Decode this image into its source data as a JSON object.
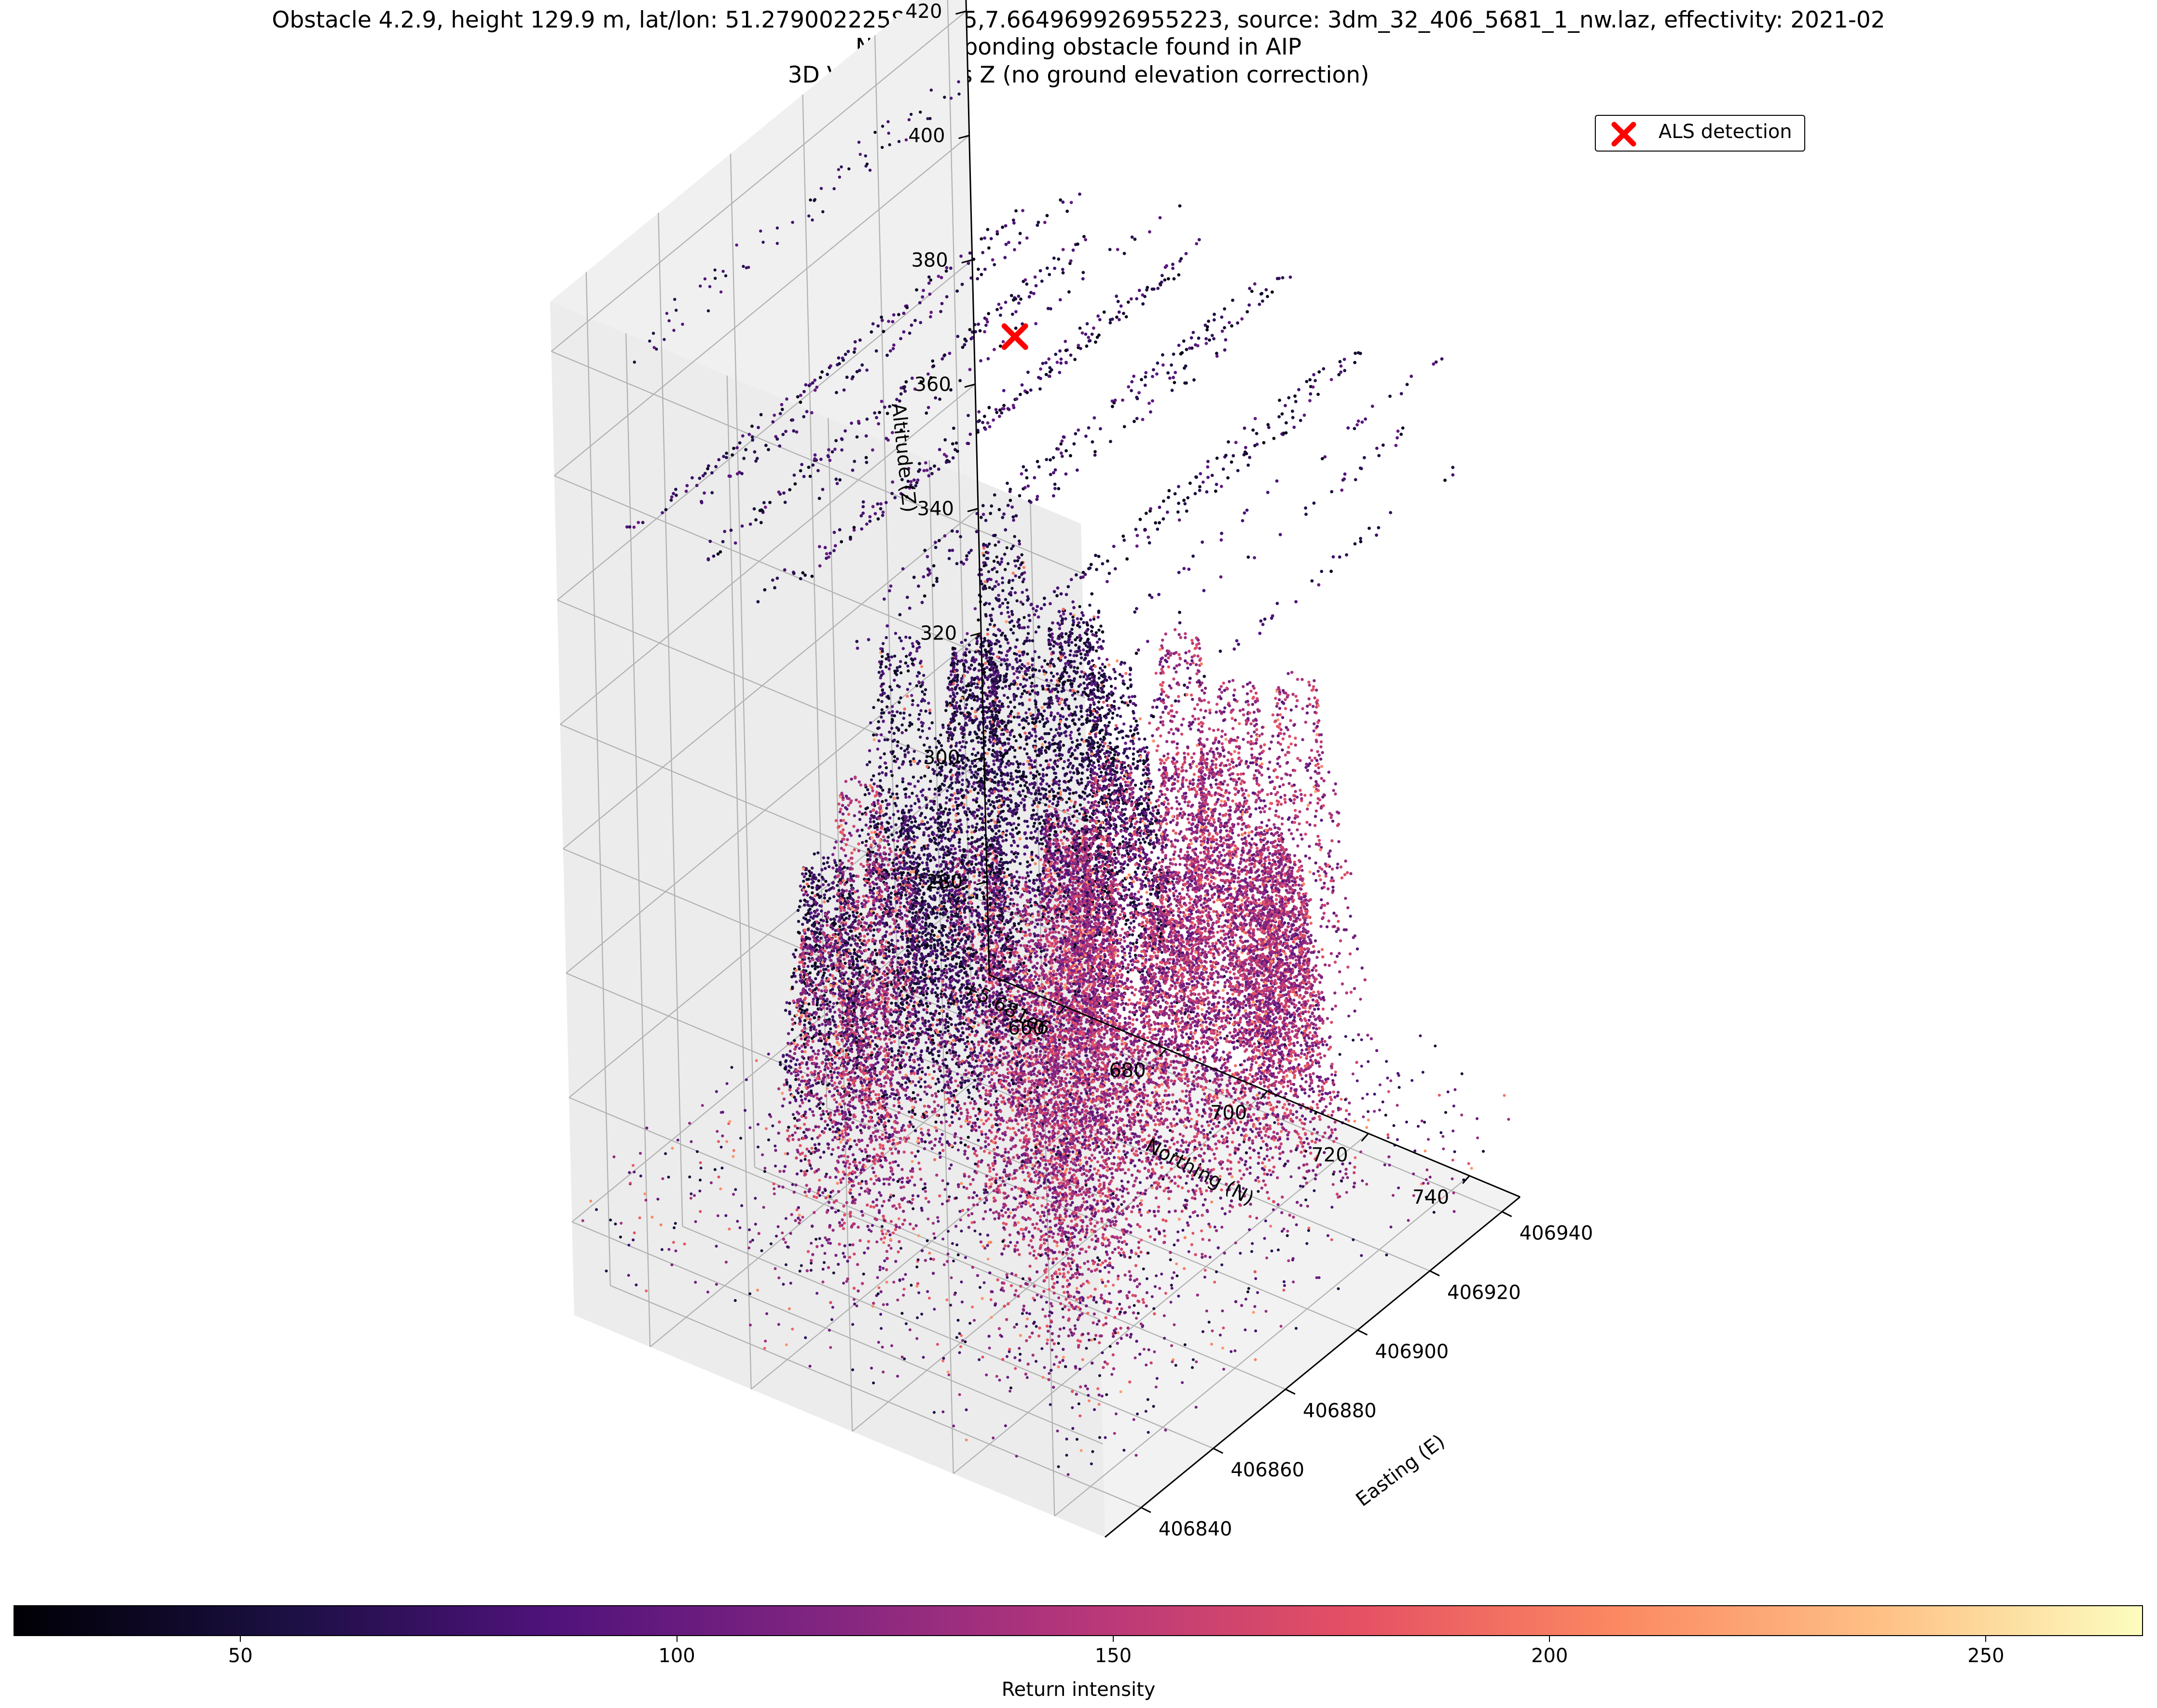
{
  "titles": {
    "line1": "Obstacle 4.2.9, height 129.9 m, lat/lon: 51.279002225872325,7.664969926955223, source: 3dm_32_406_5681_1_nw.laz, effectivity: 2021-02",
    "line2": "No corresponding obstacle found in AIP",
    "line3": "3D View: E, N vs Z (no ground elevation correction)"
  },
  "legend": {
    "label": "ALS detection",
    "marker_color": "#ff0000"
  },
  "colorbar": {
    "label": "Return intensity",
    "ticks": [
      "50",
      "100",
      "150",
      "200",
      "250"
    ],
    "range": [
      24,
      268
    ],
    "colormap": "magma"
  },
  "chart_data": {
    "type": "scatter",
    "projection": "3d",
    "title": "3D View: E, N vs Z (no ground elevation correction)",
    "xlabel": "Easting (E)",
    "ylabel": "Northing (N)",
    "zlabel": "Altitude (Z)",
    "offset_label_y": "+5.681e6",
    "x_ticks": [
      "406840",
      "406860",
      "406880",
      "406900",
      "406920",
      "406940"
    ],
    "y_ticks": [
      "660",
      "680",
      "700",
      "720",
      "740"
    ],
    "z_ticks": [
      "280",
      "300",
      "320",
      "340",
      "360",
      "380",
      "400",
      "420"
    ],
    "xlim": [
      406830,
      406945
    ],
    "ylim": [
      645,
      750
    ],
    "zlim": [
      265,
      428
    ],
    "grid": true,
    "legend_position": "top-right",
    "series": [
      {
        "name": "ALS detection",
        "marker": "x",
        "color": "#ff0000",
        "points": [
          {
            "x": 406884,
            "y": 698,
            "z": 414.7
          }
        ]
      }
    ],
    "point_cloud_groups": [
      {
        "kind": "wire-points",
        "z_min": 382,
        "z_max": 418,
        "intensity_min": 30,
        "intensity_max": 110
      },
      {
        "kind": "vegetation",
        "z_min": 270,
        "z_max": 346,
        "intensity_min": 30,
        "intensity_max": 210
      }
    ]
  }
}
